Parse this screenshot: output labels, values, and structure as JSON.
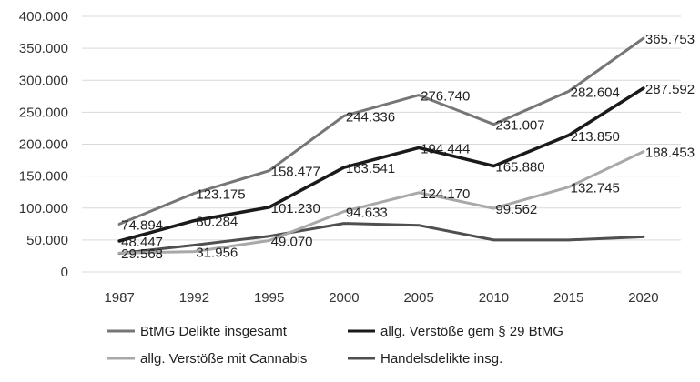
{
  "chart_data": {
    "type": "line",
    "categories": [
      "1987",
      "1992",
      "1995",
      "2000",
      "2005",
      "2010",
      "2015",
      "2020"
    ],
    "ylim": [
      0,
      400000
    ],
    "yticks": [
      0,
      50000,
      100000,
      150000,
      200000,
      250000,
      300000,
      350000,
      400000
    ],
    "ytick_labels": [
      "0",
      "50.000",
      "100.000",
      "150.000",
      "200.000",
      "250.000",
      "300.000",
      "350.000",
      "400.000"
    ],
    "grid": true,
    "legend_position": "bottom",
    "series": [
      {
        "name": "BtMG Delikte insgesamt",
        "color": "#767676",
        "values": [
          74894,
          123175,
          158477,
          244336,
          276740,
          231007,
          282604,
          365753
        ],
        "labels": [
          "74.894",
          "123.175",
          "158.477",
          "244.336",
          "276.740",
          "231.007",
          "282.604",
          "365.753"
        ]
      },
      {
        "name": "allg. Verstöße gem § 29 BtMG",
        "color": "#1a1a1a",
        "values": [
          48447,
          80284,
          101230,
          163541,
          194444,
          165880,
          213850,
          287592
        ],
        "labels": [
          "48.447",
          "80.284",
          "101.230",
          "163.541",
          "194.444",
          "165.880",
          "213.850",
          "287.592"
        ]
      },
      {
        "name": "allg. Verstöße mit Cannabis",
        "color": "#a8a8a8",
        "values": [
          29568,
          31956,
          49070,
          94633,
          124170,
          99562,
          132745,
          188453
        ],
        "labels": [
          "29.568",
          "31.956",
          "49.070",
          "94.633",
          "124.170",
          "99.562",
          "132.745",
          "188.453"
        ]
      },
      {
        "name": "Handelsdelikte insg.",
        "color": "#4f4f4f",
        "values": [
          29000,
          42000,
          56000,
          76000,
          73000,
          50000,
          50000,
          55000
        ],
        "labels": [
          "",
          "",
          "",
          "",
          "",
          "",
          "",
          ""
        ]
      }
    ]
  }
}
